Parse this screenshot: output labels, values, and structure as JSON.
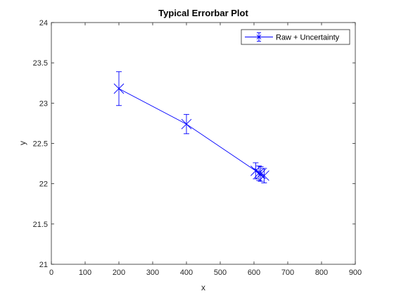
{
  "chart_data": {
    "type": "line",
    "title": "Typical Errorbar Plot",
    "xlabel": "x",
    "ylabel": "y",
    "xlim": [
      0,
      900
    ],
    "ylim": [
      21,
      24
    ],
    "x_ticks": [
      0,
      100,
      200,
      300,
      400,
      500,
      600,
      700,
      800,
      900
    ],
    "y_ticks": [
      21,
      21.5,
      22,
      22.5,
      23,
      23.5,
      24
    ],
    "x_tick_labels": [
      "0",
      "100",
      "200",
      "300",
      "400",
      "500",
      "600",
      "700",
      "800",
      "900"
    ],
    "y_tick_labels": [
      "21",
      "21.5",
      "22",
      "22.5",
      "23",
      "23.5",
      "24"
    ],
    "grid": false,
    "legend_position": "top-right",
    "series": [
      {
        "name": "Raw + Uncertainty",
        "color": "#0000ff",
        "marker": "x",
        "points": [
          {
            "x": 200,
            "y": 23.18,
            "err": 0.21
          },
          {
            "x": 400,
            "y": 22.74,
            "err": 0.12
          },
          {
            "x": 605,
            "y": 22.16,
            "err": 0.1
          },
          {
            "x": 615,
            "y": 22.13,
            "err": 0.09
          },
          {
            "x": 620,
            "y": 22.12,
            "err": 0.09
          },
          {
            "x": 630,
            "y": 22.1,
            "err": 0.09
          }
        ]
      }
    ]
  }
}
